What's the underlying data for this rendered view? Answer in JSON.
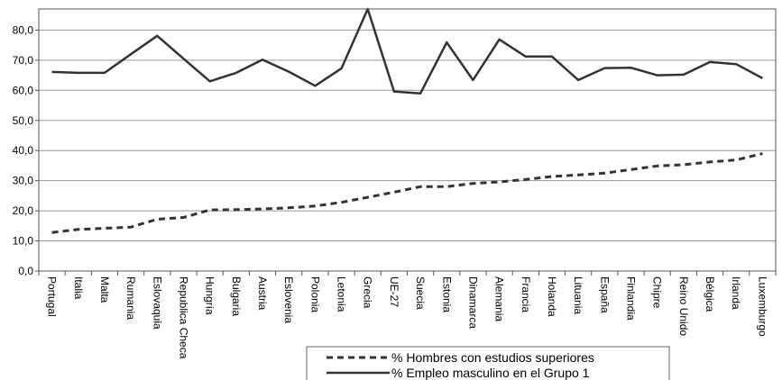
{
  "chart_data": {
    "type": "line",
    "categories": [
      "Portugal",
      "Italia",
      "Malta",
      "Rumania",
      "Eslovaquia",
      "Republica Checa",
      "Hungría",
      "Bulgaria",
      "Austria",
      "Eslovenia",
      "Polonia",
      "Letonia",
      "Grecia",
      "UE-27",
      "Suecia",
      "Estonia",
      "Dinamarca",
      "Alemania",
      "Francia",
      "Holanda",
      "Lituania",
      "España",
      "Finlandia",
      "Chipre",
      "Reino Unido",
      "Bélgica",
      "Irlanda",
      "Luxemburgo"
    ],
    "series": [
      {
        "name": "% Hombres con estudios superiores",
        "style": "dashed",
        "color": "#333333",
        "values": [
          12.8,
          13.8,
          14.2,
          14.6,
          17.2,
          17.8,
          20.3,
          20.4,
          20.6,
          21.0,
          21.6,
          22.8,
          24.5,
          26.2,
          28.0,
          28.0,
          29.1,
          29.6,
          30.4,
          31.4,
          31.9,
          32.5,
          33.7,
          34.9,
          35.3,
          36.2,
          36.9,
          39.0
        ]
      },
      {
        "name": "% Empleo masculino en el Grupo 1",
        "style": "solid",
        "color": "#333333",
        "values": [
          66.1,
          65.8,
          65.8,
          72.0,
          78.1,
          70.5,
          63.0,
          65.8,
          70.2,
          66.2,
          61.5,
          67.3,
          87.0,
          59.6,
          59.0,
          75.9,
          63.4,
          76.9,
          71.2,
          71.2,
          63.4,
          67.4,
          67.5,
          65.0,
          65.2,
          69.4,
          68.7,
          64.0
        ]
      }
    ],
    "yticks": [
      "0,0",
      "10,0",
      "20,0",
      "30,0",
      "40,0",
      "50,0",
      "60,0",
      "70,0",
      "80,0"
    ],
    "ylim": [
      0,
      87
    ],
    "grid": true,
    "legend": "bottom-right"
  }
}
